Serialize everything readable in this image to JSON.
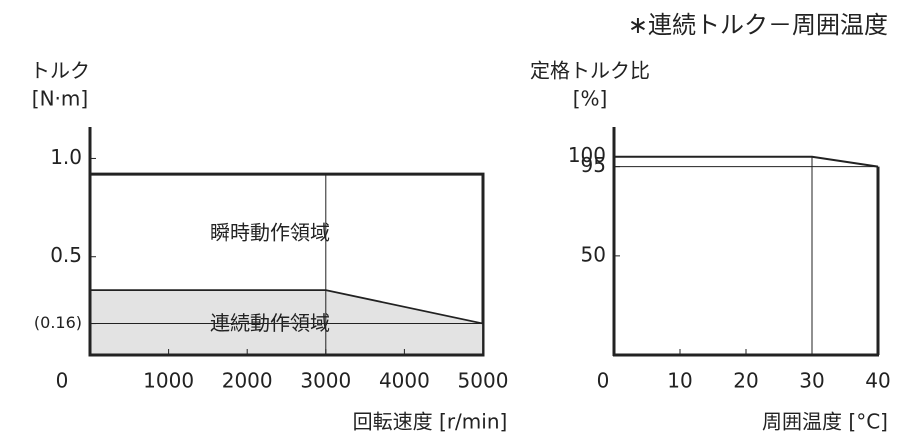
{
  "title": "∗連続トルク－周囲温度",
  "chart_data": [
    {
      "type": "area",
      "y_label": [
        "トルク",
        "[N·m]"
      ],
      "x_label": "回転速度 [r/min]",
      "xlim": [
        0,
        5000
      ],
      "ylim": [
        0,
        1.16
      ],
      "xticks": [
        0,
        1000,
        2000,
        3000,
        4000,
        5000
      ],
      "yticks": [
        {
          "value": 0.16,
          "label": "(0.16)"
        },
        {
          "value": 0.5,
          "label": "0.5"
        },
        {
          "value": 1,
          "label": "1.0"
        }
      ],
      "series": [
        {
          "name": "瞬時動作領域",
          "color": "#ffffff",
          "x": [
            0,
            5000
          ],
          "values": [
            0.92,
            0.92
          ]
        },
        {
          "name": "連続動作領域",
          "color": "#e3e3e3",
          "x": [
            0,
            3000,
            5000
          ],
          "values": [
            0.33,
            0.33,
            0.16
          ]
        }
      ]
    },
    {
      "type": "line",
      "y_label": [
        "定格トルク比",
        "[%]"
      ],
      "x_label": "周囲温度 [°C]",
      "xlim": [
        0,
        40
      ],
      "ylim": [
        0,
        115
      ],
      "xticks": [
        0,
        10,
        20,
        30,
        40
      ],
      "yticks": [
        50,
        95,
        100
      ],
      "series": [
        {
          "color": "#222222",
          "x": [
            0,
            30,
            40
          ],
          "values": [
            100,
            100,
            95
          ]
        }
      ]
    }
  ]
}
